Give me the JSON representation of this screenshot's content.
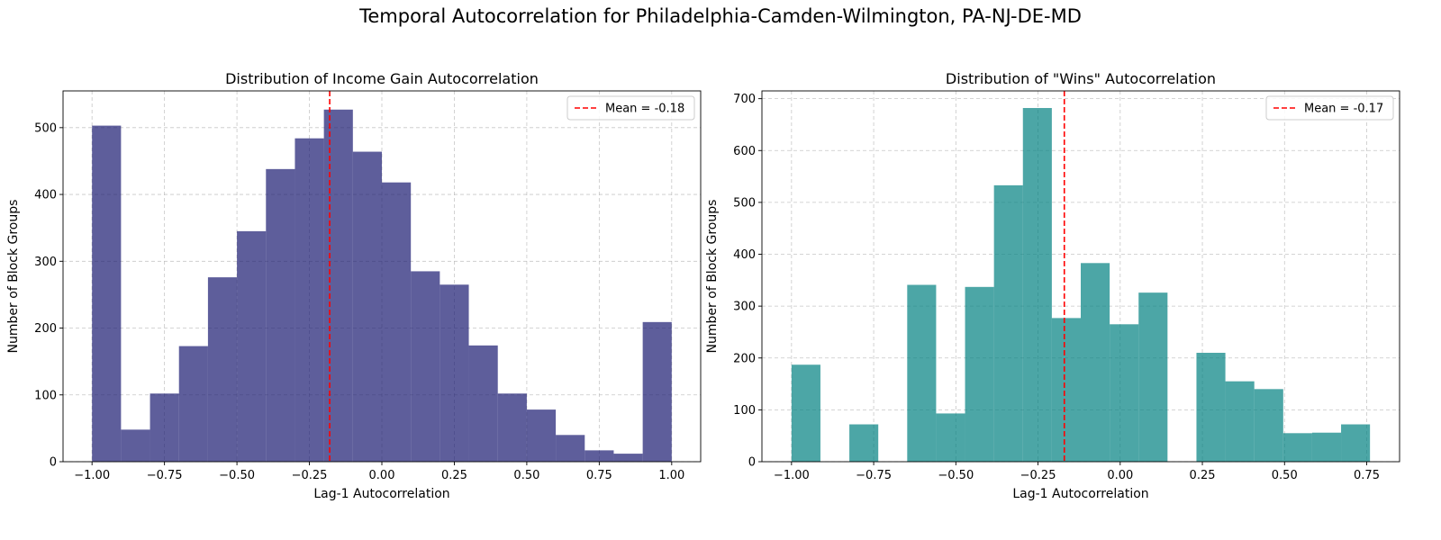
{
  "figure": {
    "title": "Temporal Autocorrelation for Philadelphia-Camden-Wilmington, PA-NJ-DE-MD"
  },
  "chart_data": [
    {
      "type": "bar",
      "title": "Distribution of Income Gain Autocorrelation",
      "xlabel": "Lag-1 Autocorrelation",
      "ylabel": "Number of Block Groups",
      "color": "#191970",
      "bin_edges": [
        -1.0,
        -0.9,
        -0.8,
        -0.7,
        -0.6,
        -0.5,
        -0.4,
        -0.3,
        -0.2,
        -0.1,
        0.0,
        0.1,
        0.2,
        0.3,
        0.4,
        0.5,
        0.6,
        0.7,
        0.8,
        0.9,
        1.0
      ],
      "values": [
        503,
        48,
        102,
        173,
        276,
        345,
        438,
        484,
        527,
        464,
        418,
        285,
        265,
        174,
        102,
        78,
        40,
        17,
        12,
        209
      ],
      "xlim": [
        -1.1,
        1.1
      ],
      "ylim": [
        0,
        555
      ],
      "xticks": [
        -1.0,
        -0.75,
        -0.5,
        -0.25,
        0.0,
        0.25,
        0.5,
        0.75,
        1.0
      ],
      "xtick_labels": [
        "−1.00",
        "−0.75",
        "−0.50",
        "−0.25",
        "0.00",
        "0.25",
        "0.50",
        "0.75",
        "1.00"
      ],
      "yticks": [
        0,
        100,
        200,
        300,
        400,
        500
      ],
      "ytick_labels": [
        "0",
        "100",
        "200",
        "300",
        "400",
        "500"
      ],
      "mean": -0.18,
      "legend": "Mean = -0.18",
      "legend_position": "upper right",
      "grid": true
    },
    {
      "type": "bar",
      "title": "Distribution of \"Wins\" Autocorrelation",
      "xlabel": "Lag-1 Autocorrelation",
      "ylabel": "Number of Block Groups",
      "color": "#008080",
      "bin_edges": [
        -1.0,
        -0.912,
        -0.824,
        -0.736,
        -0.648,
        -0.56,
        -0.472,
        -0.384,
        -0.296,
        -0.208,
        -0.12,
        -0.032,
        0.056,
        0.144,
        0.232,
        0.32,
        0.408,
        0.496,
        0.584,
        0.672,
        0.76
      ],
      "values": [
        187,
        0,
        72,
        0,
        341,
        93,
        337,
        533,
        682,
        277,
        383,
        265,
        326,
        0,
        210,
        155,
        140,
        55,
        56,
        72
      ],
      "xlim": [
        -1.09,
        0.85
      ],
      "ylim": [
        0,
        715
      ],
      "xticks": [
        -1.0,
        -0.75,
        -0.5,
        -0.25,
        0.0,
        0.25,
        0.5,
        0.75
      ],
      "xtick_labels": [
        "−1.00",
        "−0.75",
        "−0.50",
        "−0.25",
        "0.00",
        "0.25",
        "0.50",
        "0.75"
      ],
      "yticks": [
        0,
        100,
        200,
        300,
        400,
        500,
        600,
        700
      ],
      "ytick_labels": [
        "0",
        "100",
        "200",
        "300",
        "400",
        "500",
        "600",
        "700"
      ],
      "mean": -0.17,
      "legend": "Mean = -0.17",
      "legend_position": "upper right",
      "grid": true
    }
  ]
}
